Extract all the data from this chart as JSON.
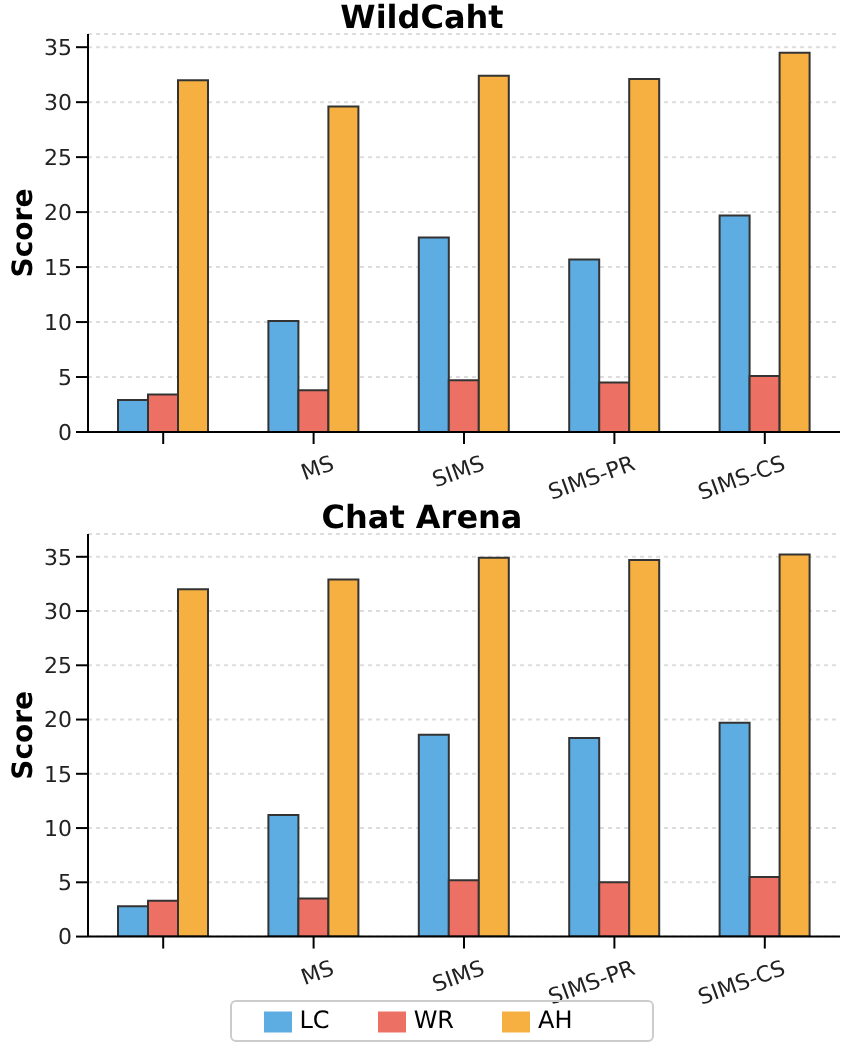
{
  "chart_data": [
    {
      "type": "bar",
      "title": "WildCaht",
      "ylabel": "Score",
      "categories": [
        null,
        "MS",
        "SIMS",
        "SIMS-PR",
        "SIMS-CS"
      ],
      "ylim": [
        0,
        36.2
      ],
      "yticks": [
        0,
        5,
        10,
        15,
        20,
        25,
        30,
        35
      ],
      "grid": "y",
      "legend": false,
      "series": [
        {
          "color": "#5dade2",
          "values": [
            2.9,
            10.1,
            17.7,
            15.7,
            19.7
          ]
        },
        {
          "color": "#ec7063",
          "values": [
            3.4,
            3.8,
            4.7,
            4.5,
            5.1
          ]
        },
        {
          "color": "#f5b041",
          "values": [
            32.0,
            29.6,
            32.4,
            32.1,
            34.5
          ]
        }
      ]
    },
    {
      "type": "bar",
      "title": "Chat Arena",
      "ylabel": "Score",
      "categories": [
        null,
        "MS",
        "SIMS",
        "SIMS-PR",
        "SIMS-CS"
      ],
      "ylim": [
        0,
        37.1
      ],
      "yticks": [
        0,
        5,
        10,
        15,
        20,
        25,
        30,
        35
      ],
      "grid": "y",
      "legend": "bottom",
      "series": [
        {
          "name": "LC",
          "color": "#5dade2",
          "values": [
            2.8,
            11.2,
            18.6,
            18.3,
            19.7
          ]
        },
        {
          "name": "WR",
          "color": "#ec7063",
          "values": [
            3.3,
            3.5,
            5.2,
            5.0,
            5.5
          ]
        },
        {
          "name": "AH",
          "color": "#f5b041",
          "values": [
            32.0,
            32.9,
            34.9,
            34.7,
            35.2
          ]
        }
      ]
    }
  ]
}
